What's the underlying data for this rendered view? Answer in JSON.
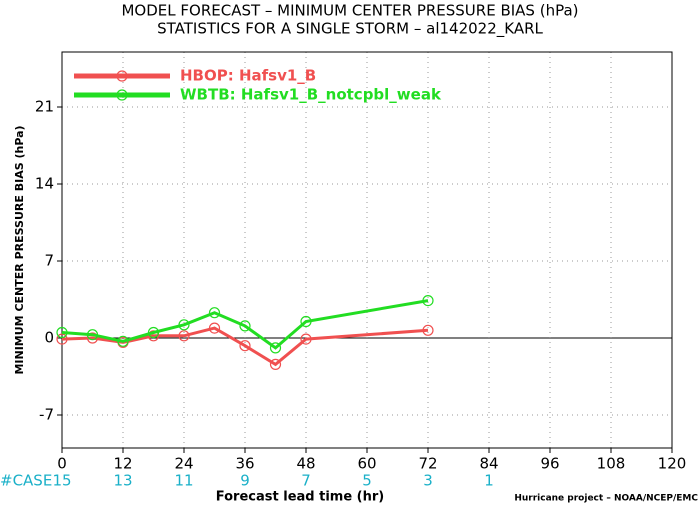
{
  "chart_data": {
    "type": "line",
    "title": "MODEL FORECAST – MINIMUM CENTER PRESSURE BIAS (hPa)",
    "subtitle": "STATISTICS FOR A SINGLE STORM – al142022_KARL",
    "x_label": "Forecast lead time (hr)",
    "y_label": "MINIMUM CENTER PRESSURE BIAS (hPa)",
    "x": [
      0,
      6,
      12,
      18,
      24,
      30,
      36,
      42,
      48,
      72
    ],
    "series": [
      {
        "name": "HBOP: Hafsv1_B",
        "color": "#f05050",
        "values": [
          -0.1,
          0,
          -0.4,
          0.2,
          0.2,
          0.9,
          -0.7,
          -2.4,
          -0.1,
          0.7
        ]
      },
      {
        "name": "WBTB: Hafsv1_B_notcpbl_weak",
        "color": "#22dd22",
        "values": [
          0.5,
          0.3,
          -0.3,
          0.5,
          1.2,
          2.3,
          1.1,
          -0.9,
          1.5,
          3.4
        ]
      }
    ],
    "xlim": [
      0,
      120
    ],
    "xticks": [
      0,
      12,
      24,
      36,
      48,
      60,
      72,
      84,
      96,
      108,
      120
    ],
    "ylim": [
      -10,
      26
    ],
    "yticks": [
      -7,
      0,
      7,
      14,
      21
    ],
    "grid": true,
    "legend": "top-left",
    "case_counts": {
      "label": "#CASE",
      "color": "#1ab0c8",
      "x": [
        0,
        12,
        24,
        36,
        48,
        60,
        72,
        84
      ],
      "values": [
        15,
        13,
        11,
        9,
        7,
        5,
        3,
        1
      ]
    },
    "footer": "Hurricane project – NOAA/NCEP/EMC"
  }
}
